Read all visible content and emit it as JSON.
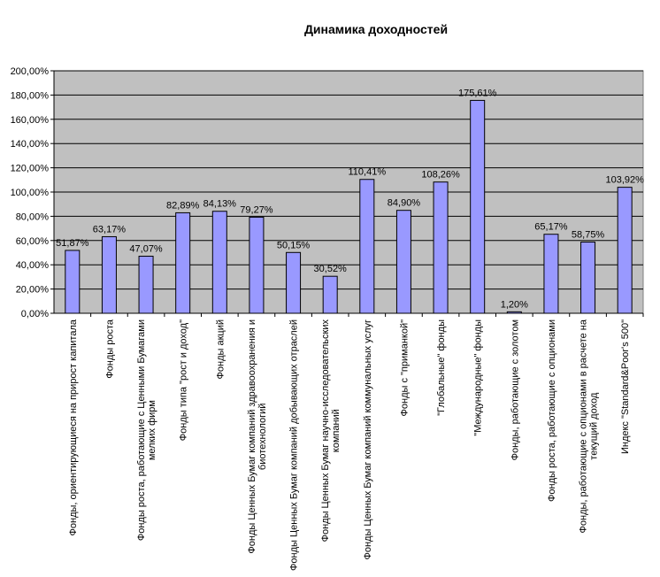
{
  "chart_data": {
    "type": "bar",
    "title": "Динамика доходностей",
    "xlabel": "",
    "ylabel": "",
    "ylim": [
      0,
      200
    ],
    "ytick_step": 20,
    "ytick_labels": [
      "0,00%",
      "20,00%",
      "40,00%",
      "60,00%",
      "80,00%",
      "100,00%",
      "120,00%",
      "140,00%",
      "160,00%",
      "180,00%",
      "200,00%"
    ],
    "grid": true,
    "legend": "none",
    "bar_color": "#9999FF",
    "plot_background": "#C0C0C0",
    "categories": [
      [
        "Фонды, ориентирующиеся на прирост капитала"
      ],
      [
        "Фонды роста"
      ],
      [
        "Фонды роста, работающие с Ценными Бумагами",
        "мелких фирм"
      ],
      [
        "Фонды типа \"рост и доход\""
      ],
      [
        "Фонды акций"
      ],
      [
        "Фонды Ценных Бумаг компаний здравоохранения и",
        "биотехнологий"
      ],
      [
        "Фонды Ценных Бумаг компаний добывающих отраслей"
      ],
      [
        "Фонды Ценных Бумаг научно-исследовательских",
        "компаний"
      ],
      [
        "Фонды Ценных Бумаг компаний коммунальных услуг"
      ],
      [
        "Фонды с \"приманкой\""
      ],
      [
        "\"Глобальные\" фонды"
      ],
      [
        "\"Международные\" фонды"
      ],
      [
        "Фонды, работающие с золотом"
      ],
      [
        "Фонды роста, работающие с опционами"
      ],
      [
        "Фонды, работающие с опционами в расчете на",
        "текущий доход"
      ],
      [
        "Индекс \"Standard&Poor's 500\""
      ]
    ],
    "values": [
      51.87,
      63.17,
      47.07,
      82.89,
      84.13,
      79.27,
      50.15,
      30.52,
      110.41,
      84.9,
      108.26,
      175.61,
      1.2,
      65.17,
      58.75,
      103.92
    ],
    "data_labels": [
      "51,87%",
      "63,17%",
      "47,07%",
      "82,89%",
      "84,13%",
      "79,27%",
      "50,15%",
      "30,52%",
      "110,41%",
      "84,90%",
      "108,26%",
      "175,61%",
      "1,20%",
      "65,17%",
      "58,75%",
      "103,92%"
    ]
  }
}
